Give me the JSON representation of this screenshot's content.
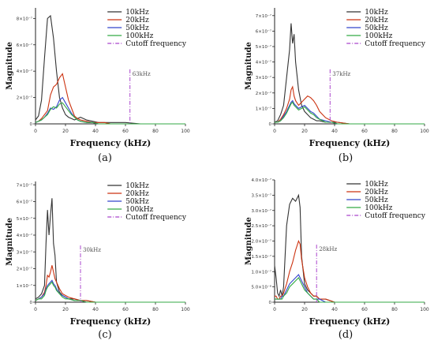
{
  "chart_data": [
    {
      "type": "line",
      "panel_label": "(a)",
      "xlabel": "Frequency (kHz)",
      "ylabel": "Magnitude",
      "xlim": [
        0,
        100
      ],
      "ylim": [
        0,
        8.8e-07
      ],
      "xticks": [
        0,
        20,
        40,
        60,
        80,
        100
      ],
      "yticks": [
        0,
        2e-07,
        4e-07,
        6e-07,
        8e-07
      ],
      "ytick_labels": [
        "0",
        "2×10⁻⁷",
        "4×10⁻⁷",
        "6×10⁻⁷",
        "8×10⁻⁷"
      ],
      "legend_position": "top-right",
      "x": [
        0,
        2,
        4,
        6,
        8,
        10,
        12,
        14,
        16,
        18,
        20,
        22,
        24,
        26,
        28,
        30,
        34,
        38,
        42,
        46,
        50,
        60,
        70,
        80,
        90,
        100
      ],
      "series": [
        {
          "name": "10kHz",
          "color": "#333333",
          "values": [
            3e-08,
            6e-08,
            1.8e-07,
            5e-07,
            8e-07,
            8.2e-07,
            6.5e-07,
            4e-07,
            2e-07,
            1.2e-07,
            7e-08,
            5e-08,
            4e-08,
            3e-08,
            4e-08,
            5e-08,
            3e-08,
            2e-08,
            1e-08,
            1e-08,
            1e-08,
            1e-08,
            0,
            0,
            0,
            0
          ]
        },
        {
          "name": "20kHz",
          "color": "#cc3311",
          "values": [
            1e-08,
            2e-08,
            4e-08,
            7e-08,
            1e-07,
            2.2e-07,
            2.8e-07,
            3e-07,
            3.5e-07,
            3.8e-07,
            2.8e-07,
            1.8e-07,
            1.2e-07,
            6e-08,
            4e-08,
            3e-08,
            2e-08,
            1e-08,
            1e-08,
            1e-08,
            0,
            0,
            0,
            0,
            0,
            0
          ]
        },
        {
          "name": "50kHz",
          "color": "#3344cc",
          "values": [
            1e-08,
            2e-08,
            3e-08,
            5e-08,
            8e-08,
            1.2e-07,
            1.1e-07,
            1.3e-07,
            1.8e-07,
            2e-07,
            1.6e-07,
            1.2e-07,
            8e-08,
            5e-08,
            3e-08,
            2e-08,
            1e-08,
            1e-08,
            0,
            0,
            0,
            0,
            0,
            0,
            0,
            0
          ]
        },
        {
          "name": "100kHz",
          "color": "#33aa44",
          "values": [
            1e-08,
            2e-08,
            3e-08,
            5e-08,
            7e-08,
            1.1e-07,
            1.3e-07,
            1.2e-07,
            1.5e-07,
            1.6e-07,
            1.3e-07,
            1e-07,
            7e-08,
            5e-08,
            3e-08,
            2e-08,
            1e-08,
            1e-08,
            0,
            0,
            0,
            0,
            0,
            0,
            0,
            0
          ]
        }
      ],
      "cutoff": {
        "x": 63,
        "label": "63kHz",
        "legend_label": "Cutoff frequency",
        "color": "#aa44cc"
      }
    },
    {
      "type": "line",
      "panel_label": "(b)",
      "xlabel": "Frequency (kHz)",
      "ylabel": "Magnitude",
      "xlim": [
        0,
        100
      ],
      "ylim": [
        0,
        7.5e-07
      ],
      "xticks": [
        0,
        20,
        40,
        60,
        80,
        100
      ],
      "yticks": [
        0,
        1e-07,
        2e-07,
        3e-07,
        4e-07,
        5e-07,
        6e-07,
        7e-07
      ],
      "ytick_labels": [
        "0",
        "1×10⁻⁷",
        "2×10⁻⁷",
        "3×10⁻⁷",
        "4×10⁻⁷",
        "5×10⁻⁷",
        "6×10⁻⁷",
        "7×10⁻⁷"
      ],
      "legend_position": "top-right",
      "x": [
        0,
        2,
        4,
        6,
        8,
        10,
        11,
        12,
        13,
        14,
        16,
        18,
        20,
        22,
        24,
        26,
        28,
        30,
        34,
        38,
        42,
        50,
        60,
        70,
        80,
        90,
        100
      ],
      "series": [
        {
          "name": "10kHz",
          "color": "#333333",
          "values": [
            1e-08,
            2e-08,
            6e-08,
            1.2e-07,
            3e-07,
            4.8e-07,
            6.5e-07,
            5.2e-07,
            5.8e-07,
            4e-07,
            2.2e-07,
            1.2e-07,
            8e-08,
            6e-08,
            4e-08,
            3e-08,
            2e-08,
            2e-08,
            1e-08,
            1e-08,
            1e-08,
            0,
            0,
            0,
            0,
            0,
            0
          ]
        },
        {
          "name": "20kHz",
          "color": "#cc3311",
          "values": [
            1e-08,
            1e-08,
            3e-08,
            6e-08,
            1e-07,
            1.6e-07,
            2.2e-07,
            2.4e-07,
            1.8e-07,
            1.5e-07,
            1.2e-07,
            1.4e-07,
            1.6e-07,
            1.8e-07,
            1.7e-07,
            1.5e-07,
            1.2e-07,
            8e-08,
            4e-08,
            2e-08,
            1e-08,
            0,
            0,
            0,
            0,
            0,
            0
          ]
        },
        {
          "name": "50kHz",
          "color": "#3344cc",
          "values": [
            1e-08,
            1e-08,
            2e-08,
            5e-08,
            8e-08,
            1.2e-07,
            1.4e-07,
            1.5e-07,
            1.3e-07,
            1.2e-07,
            1e-07,
            1.1e-07,
            1.2e-07,
            1e-07,
            8e-08,
            7e-08,
            5e-08,
            3e-08,
            2e-08,
            1e-08,
            0,
            0,
            0,
            0,
            0,
            0,
            0
          ]
        },
        {
          "name": "100kHz",
          "color": "#33aa44",
          "values": [
            1e-08,
            1e-08,
            2e-08,
            4e-08,
            7e-08,
            1.1e-07,
            1.3e-07,
            1.4e-07,
            1.2e-07,
            1.1e-07,
            9e-08,
            1e-07,
            1.1e-07,
            9e-08,
            7e-08,
            6e-08,
            4e-08,
            3e-08,
            1e-08,
            1e-08,
            0,
            0,
            0,
            0,
            0,
            0,
            0
          ]
        }
      ],
      "cutoff": {
        "x": 37,
        "label": "37kHz",
        "legend_label": "Cutoff frequency",
        "color": "#aa44cc"
      }
    },
    {
      "type": "line",
      "panel_label": "(c)",
      "xlabel": "Frequency (kHz)",
      "ylabel": "Magnitude",
      "xlim": [
        0,
        100
      ],
      "ylim": [
        0,
        7.2e-07
      ],
      "xticks": [
        0,
        20,
        40,
        60,
        80,
        100
      ],
      "yticks": [
        0,
        1e-07,
        2e-07,
        3e-07,
        4e-07,
        5e-07,
        6e-07,
        7e-07
      ],
      "ytick_labels": [
        "0",
        "1×10⁻⁷",
        "2×10⁻⁷",
        "3×10⁻⁷",
        "4×10⁻⁷",
        "5×10⁻⁷",
        "6×10⁻⁷",
        "7×10⁻⁷"
      ],
      "legend_position": "top-right",
      "x": [
        0,
        2,
        4,
        6,
        7,
        8,
        9,
        10,
        11,
        12,
        13,
        14,
        16,
        18,
        20,
        22,
        26,
        30,
        34,
        40,
        50,
        60,
        70,
        80,
        90,
        100
      ],
      "series": [
        {
          "name": "10kHz",
          "color": "#333333",
          "values": [
            2e-08,
            3e-08,
            5e-08,
            1e-07,
            3.5e-07,
            5.5e-07,
            4e-07,
            5.2e-07,
            6.2e-07,
            3.5e-07,
            2.8e-07,
            1.2e-07,
            6e-08,
            4e-08,
            3e-08,
            2e-08,
            2e-08,
            1e-08,
            1e-08,
            0,
            0,
            0,
            0,
            0,
            0,
            0
          ]
        },
        {
          "name": "20kHz",
          "color": "#cc3311",
          "values": [
            1e-08,
            2e-08,
            3e-08,
            6e-08,
            1e-07,
            1.6e-07,
            1.5e-07,
            1.8e-07,
            2.2e-07,
            1.8e-07,
            1.4e-07,
            1.2e-07,
            8e-08,
            5e-08,
            4e-08,
            3e-08,
            2e-08,
            1e-08,
            1e-08,
            0,
            0,
            0,
            0,
            0,
            0,
            0
          ]
        },
        {
          "name": "50kHz",
          "color": "#3344cc",
          "values": [
            1e-08,
            2e-08,
            3e-08,
            5e-08,
            8e-08,
            1e-07,
            1.1e-07,
            1.2e-07,
            1.3e-07,
            1.1e-07,
            1e-07,
            8e-08,
            5e-08,
            4e-08,
            3e-08,
            2e-08,
            1e-08,
            1e-08,
            0,
            0,
            0,
            0,
            0,
            0,
            0,
            0
          ]
        },
        {
          "name": "100kHz",
          "color": "#33aa44",
          "values": [
            1e-08,
            2e-08,
            2e-08,
            4e-08,
            7e-08,
            9e-08,
            1e-07,
            1.1e-07,
            1.2e-07,
            1e-07,
            9e-08,
            7e-08,
            5e-08,
            3e-08,
            2e-08,
            2e-08,
            1e-08,
            1e-08,
            0,
            0,
            0,
            0,
            0,
            0,
            0,
            0
          ]
        }
      ],
      "cutoff": {
        "x": 30,
        "label": "30kHz",
        "legend_label": "Cutoff frequency",
        "color": "#aa44cc"
      }
    },
    {
      "type": "line",
      "panel_label": "(d)",
      "xlabel": "Frequency (kHz)",
      "ylabel": "Magnitude",
      "xlim": [
        0,
        100
      ],
      "ylim": [
        0,
        4e-07
      ],
      "xticks": [
        0,
        20,
        40,
        60,
        80,
        100
      ],
      "yticks": [
        0,
        5e-08,
        1e-07,
        1.5e-07,
        2e-07,
        2.5e-07,
        3e-07,
        3.5e-07,
        4e-07
      ],
      "ytick_labels": [
        "0",
        "5.0×10⁻⁸",
        "1.0×10⁻⁷",
        "1.5×10⁻⁷",
        "2.0×10⁻⁷",
        "2.5×10⁻⁷",
        "3.0×10⁻⁷",
        "3.5×10⁻⁷",
        "4.0×10⁻⁷"
      ],
      "legend_position": "top-right",
      "x": [
        0,
        1,
        2,
        3,
        4,
        5,
        6,
        8,
        10,
        12,
        14,
        16,
        17,
        18,
        20,
        22,
        24,
        26,
        28,
        30,
        34,
        40,
        50,
        60,
        70,
        80,
        90,
        100
      ],
      "series": [
        {
          "name": "10kHz",
          "color": "#333333",
          "values": [
            1.2e-07,
            8e-08,
            3e-08,
            2e-08,
            4e-08,
            2e-08,
            5e-08,
            2.5e-07,
            3.2e-07,
            3.4e-07,
            3.3e-07,
            3.5e-07,
            3.1e-07,
            1.5e-07,
            6e-08,
            4e-08,
            3e-08,
            2e-08,
            2e-08,
            1e-08,
            1e-08,
            0,
            0,
            0,
            0,
            0,
            0,
            0
          ]
        },
        {
          "name": "20kHz",
          "color": "#cc3311",
          "values": [
            2e-08,
            2e-08,
            1e-08,
            1e-08,
            2e-08,
            2e-08,
            3e-08,
            6e-08,
            1e-07,
            1.3e-07,
            1.7e-07,
            2e-07,
            1.9e-07,
            1.4e-07,
            8e-08,
            5e-08,
            3e-08,
            2e-08,
            2e-08,
            1e-08,
            1e-08,
            0,
            0,
            0,
            0,
            0,
            0,
            0
          ]
        },
        {
          "name": "50kHz",
          "color": "#3344cc",
          "values": [
            1e-08,
            1e-08,
            1e-08,
            1e-08,
            1e-08,
            2e-08,
            2e-08,
            4e-08,
            6e-08,
            7e-08,
            8e-08,
            9e-08,
            8e-08,
            7e-08,
            5e-08,
            3e-08,
            2e-08,
            1e-08,
            1e-08,
            1e-08,
            0,
            0,
            0,
            0,
            0,
            0,
            0,
            0
          ]
        },
        {
          "name": "100kHz",
          "color": "#33aa44",
          "values": [
            1e-08,
            1e-08,
            1e-08,
            1e-08,
            1e-08,
            1e-08,
            2e-08,
            3e-08,
            5e-08,
            6e-08,
            7e-08,
            8e-08,
            7e-08,
            6e-08,
            4e-08,
            3e-08,
            2e-08,
            1e-08,
            1e-08,
            0,
            0,
            0,
            0,
            0,
            0,
            0,
            0,
            0
          ]
        }
      ],
      "cutoff": {
        "x": 28,
        "label": "28kHz",
        "legend_label": "Cutoff frequency",
        "color": "#aa44cc"
      }
    }
  ]
}
